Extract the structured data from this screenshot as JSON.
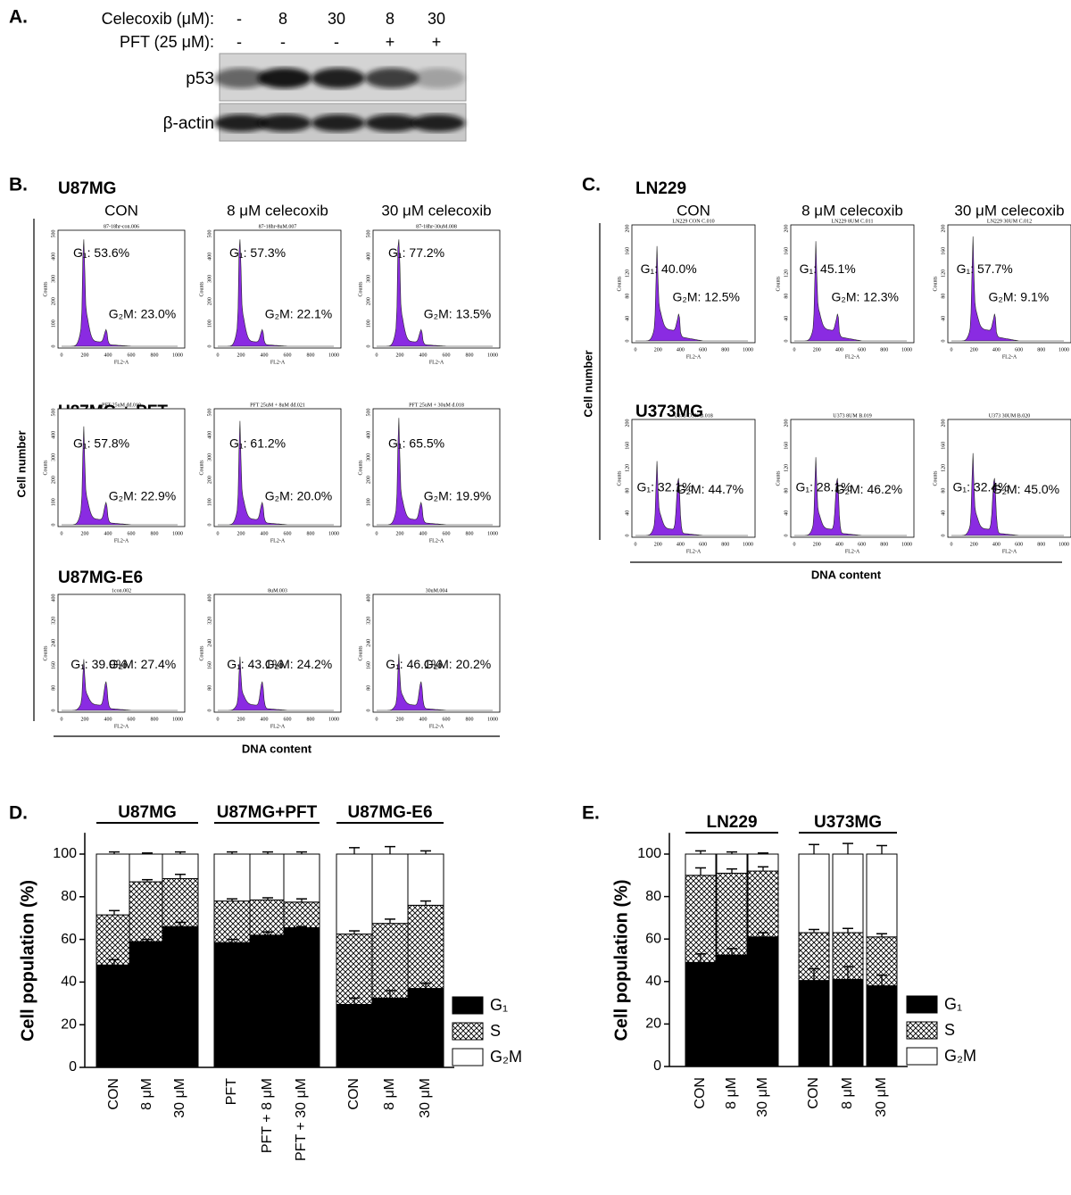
{
  "panel_labels": {
    "a": "A.",
    "b": "B.",
    "c": "C.",
    "d": "D.",
    "e": "E."
  },
  "blot": {
    "rows": [
      {
        "label": "Celecoxib (μM):",
        "values": [
          "-",
          "8",
          "30",
          "8",
          "30"
        ]
      },
      {
        "label": "PFT (25 μM):",
        "values": [
          "-",
          "-",
          "-",
          "+",
          "+"
        ]
      }
    ],
    "bands": [
      "p53",
      "β-actin"
    ]
  },
  "flow": [
    {
      "columns": [
        "CON",
        "8 μM celecoxib",
        "30 μM celecoxib"
      ],
      "ylabel": "Cell number",
      "xlabel": "DNA content",
      "hist_xlabel": "FL2-A",
      "hist_ylabel": "Counts",
      "xticks": [
        0,
        200,
        400,
        600,
        800,
        1000
      ],
      "rows": [
        {
          "title": "U87MG",
          "yticks": [
            0,
            100,
            200,
            300,
            400,
            500
          ],
          "plots": [
            {
              "file": "87-18hr-con.006",
              "g1": "G₁: 53.6%",
              "g2m": "G₂M: 23.0%"
            },
            {
              "file": "87-18hr-8uM.007",
              "g1": "G₁: 57.3%",
              "g2m": "G₂M: 22.1%"
            },
            {
              "file": "87-18hr-30uM.008",
              "g1": "G₁: 77.2%",
              "g2m": "G₂M: 13.5%"
            }
          ]
        },
        {
          "title": "U87MG + PFT",
          "yticks": [
            0,
            100,
            200,
            300,
            400,
            500
          ],
          "plots": [
            {
              "file": "PFT 25uM dd.019",
              "g1": "G₁: 57.8%",
              "g2m": "G₂M: 22.9%"
            },
            {
              "file": "PFT 25uM + 8uM dd.021",
              "g1": "G₁: 61.2%",
              "g2m": "G₂M: 20.0%"
            },
            {
              "file": "PFT 25uM + 30uM d.018",
              "g1": "G₁: 65.5%",
              "g2m": "G₂M: 19.9%"
            }
          ]
        },
        {
          "title": "U87MG-E6",
          "yticks": [
            0,
            80,
            160,
            240,
            320,
            400
          ],
          "plots": [
            {
              "file": "1con.002",
              "g1": "G₁: 39.9%",
              "g2m": "G₂M: 27.4%"
            },
            {
              "file": "8uM.003",
              "g1": "G₁: 43.1%",
              "g2m": "G₂M: 24.2%"
            },
            {
              "file": "30uM.004",
              "g1": "G₁: 46.1%",
              "g2m": "G₂M: 20.2%"
            }
          ]
        }
      ]
    },
    {
      "columns": [
        "CON",
        "8 μM celecoxib",
        "30 μM celecoxib"
      ],
      "ylabel": "Cell number",
      "xlabel": "DNA content",
      "hist_xlabel": "FL2-A",
      "hist_ylabel": "Counts",
      "xticks": [
        0,
        200,
        400,
        600,
        800,
        1000
      ],
      "rows": [
        {
          "title": "LN229",
          "yticks": [
            0,
            40,
            80,
            120,
            160,
            200
          ],
          "plots": [
            {
              "file": "LN229 CON C.010",
              "g1": "G₁: 40.0%",
              "g2m": "G₂M: 12.5%"
            },
            {
              "file": "LN229 8UM C.011",
              "g1": "G₁: 45.1%",
              "g2m": "G₂M: 12.3%"
            },
            {
              "file": "LN229 30UM C.012",
              "g1": "G₁: 57.7%",
              "g2m": "G₂M: 9.1%"
            }
          ]
        },
        {
          "title": "U373MG",
          "yticks": [
            0,
            40,
            80,
            120,
            160,
            200
          ],
          "plots": [
            {
              "file": "U373 CON B.018",
              "g1": "G₁: 32.1%",
              "g2m": "G₂M: 44.7%"
            },
            {
              "file": "U373 8UM B.019",
              "g1": "G₁: 28.1%",
              "g2m": "G₂M: 46.2%"
            },
            {
              "file": "U373 30UM B.020",
              "g1": "G₁: 32.4%",
              "g2m": "G₂M: 45.0%"
            }
          ]
        }
      ]
    }
  ],
  "chart_data": [
    {
      "type": "bar",
      "stacked": true,
      "ylabel": "Cell population (%)",
      "groups": [
        "U87MG",
        "U87MG+PFT",
        "U87MG-E6"
      ],
      "categories": [
        "CON",
        "8 μM",
        "30 μM",
        "PFT",
        "PFT + 8 μM",
        "PFT + 30 μM",
        "CON",
        "8 μM",
        "30 μM"
      ],
      "ylim": [
        0,
        110
      ],
      "yticks": [
        0,
        20,
        40,
        60,
        80,
        100
      ],
      "legend": "right",
      "series": [
        {
          "name": "G₁",
          "color": "#000000",
          "values": [
            48,
            59,
            66,
            58.5,
            62,
            65.5,
            29.5,
            32.5,
            37
          ],
          "errors": [
            2.5,
            1,
            2,
            1.5,
            1.5,
            0.5,
            3,
            3.5,
            2.5
          ]
        },
        {
          "name": "S",
          "color": "#ffffff",
          "pattern": "crosshatch",
          "values": [
            23.5,
            28,
            22.5,
            19.5,
            16.5,
            12,
            33,
            35,
            39
          ],
          "errors": [
            2,
            1,
            2,
            1,
            1,
            1.5,
            1.5,
            2,
            2
          ]
        },
        {
          "name": "G₂M",
          "color": "#ffffff",
          "values": [
            28.5,
            13,
            11.5,
            22,
            21.5,
            22.5,
            37.5,
            32.5,
            24
          ],
          "errors": [
            1,
            0.5,
            1,
            1,
            1,
            1,
            3,
            3.5,
            1.5
          ]
        }
      ]
    },
    {
      "type": "bar",
      "stacked": true,
      "ylabel": "Cell population (%)",
      "groups": [
        "LN229",
        "U373MG"
      ],
      "categories": [
        "CON",
        "8 μM",
        "30 μM",
        "CON",
        "8 μM",
        "30 μM"
      ],
      "ylim": [
        0,
        110
      ],
      "yticks": [
        0,
        20,
        40,
        60,
        80,
        100
      ],
      "legend": "right",
      "series": [
        {
          "name": "G₁",
          "color": "#000000",
          "values": [
            49,
            52.5,
            61,
            40.5,
            41,
            38
          ],
          "errors": [
            4,
            3,
            2,
            5.5,
            6,
            5
          ]
        },
        {
          "name": "S",
          "color": "#ffffff",
          "pattern": "crosshatch",
          "values": [
            41,
            38.5,
            31,
            22.5,
            22,
            23
          ],
          "errors": [
            3.5,
            2,
            2,
            1.5,
            2,
            1.5
          ]
        },
        {
          "name": "G₂M",
          "color": "#ffffff",
          "values": [
            10,
            9,
            8,
            37,
            37,
            39
          ],
          "errors": [
            1.5,
            1,
            0.5,
            4.5,
            5,
            4
          ]
        }
      ]
    }
  ]
}
